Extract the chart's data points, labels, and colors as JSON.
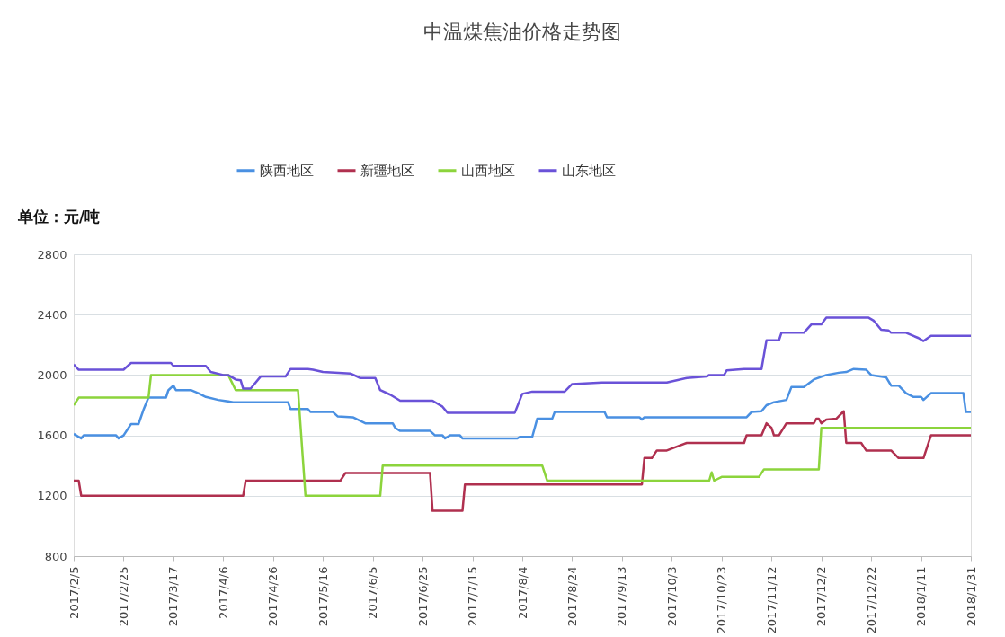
{
  "chart_data": {
    "type": "line",
    "title": "中温煤焦油价格走势图",
    "annotations": [
      "单位：元/吨"
    ],
    "ylim": [
      800,
      2800
    ],
    "yticks": [
      800,
      1200,
      1600,
      2000,
      2400,
      2800
    ],
    "xlim": [
      "2017-02-05",
      "2018-01-31"
    ],
    "xticks": [
      {
        "value": "2017-02-05",
        "label": "2017/2/5"
      },
      {
        "value": "2017-02-25",
        "label": "2017/2/25"
      },
      {
        "value": "2017-03-17",
        "label": "2017/3/17"
      },
      {
        "value": "2017-04-06",
        "label": "2017/4/6"
      },
      {
        "value": "2017-04-26",
        "label": "2017/4/26"
      },
      {
        "value": "2017-05-16",
        "label": "2017/5/16"
      },
      {
        "value": "2017-06-05",
        "label": "2017/6/5"
      },
      {
        "value": "2017-06-25",
        "label": "2017/6/25"
      },
      {
        "value": "2017-07-15",
        "label": "2017/7/15"
      },
      {
        "value": "2017-08-04",
        "label": "2017/8/4"
      },
      {
        "value": "2017-08-24",
        "label": "2017/8/24"
      },
      {
        "value": "2017-09-13",
        "label": "2017/9/13"
      },
      {
        "value": "2017-10-03",
        "label": "2017/10/3"
      },
      {
        "value": "2017-10-23",
        "label": "2017/10/23"
      },
      {
        "value": "2017-11-12",
        "label": "2017/11/12"
      },
      {
        "value": "2017-12-02",
        "label": "2017/12/2"
      },
      {
        "value": "2017-12-22",
        "label": "2017/12/22"
      },
      {
        "value": "2018-01-11",
        "label": "2018/1/11"
      },
      {
        "value": "2018-01-31",
        "label": "2018/1/31"
      }
    ],
    "grid": "y",
    "legend": "top",
    "series": [
      {
        "name": "陕西地区",
        "color": "#4a90e2",
        "x": [
          "2017-02-05",
          "2017-02-08",
          "2017-02-09",
          "2017-02-22",
          "2017-02-23",
          "2017-02-25",
          "2017-02-28",
          "2017-03-03",
          "2017-03-05",
          "2017-03-07",
          "2017-03-14",
          "2017-03-15",
          "2017-03-17",
          "2017-03-18",
          "2017-03-24",
          "2017-03-27",
          "2017-03-30",
          "2017-04-04",
          "2017-04-10",
          "2017-05-02",
          "2017-05-03",
          "2017-05-10",
          "2017-05-11",
          "2017-05-20",
          "2017-05-22",
          "2017-05-28",
          "2017-06-02",
          "2017-06-13",
          "2017-06-14",
          "2017-06-16",
          "2017-06-28",
          "2017-06-30",
          "2017-07-03",
          "2017-07-04",
          "2017-07-06",
          "2017-07-10",
          "2017-07-11",
          "2017-08-02",
          "2017-08-03",
          "2017-08-08",
          "2017-08-10",
          "2017-08-16",
          "2017-08-17",
          "2017-09-06",
          "2017-09-07",
          "2017-09-20",
          "2017-09-21",
          "2017-09-22",
          "2017-11-02",
          "2017-11-04",
          "2017-11-08",
          "2017-11-10",
          "2017-11-13",
          "2017-11-18",
          "2017-11-20",
          "2017-11-25",
          "2017-11-29",
          "2017-12-04",
          "2017-12-09",
          "2017-12-12",
          "2017-12-15",
          "2017-12-20",
          "2017-12-22",
          "2017-12-28",
          "2017-12-30",
          "2018-01-02",
          "2018-01-05",
          "2018-01-08",
          "2018-01-11",
          "2018-01-12",
          "2018-01-15",
          "2018-01-28",
          "2018-01-29",
          "2018-01-31"
        ],
        "values": [
          1610,
          1580,
          1600,
          1600,
          1580,
          1600,
          1675,
          1675,
          1770,
          1850,
          1850,
          1900,
          1930,
          1900,
          1900,
          1880,
          1855,
          1835,
          1820,
          1820,
          1775,
          1775,
          1755,
          1755,
          1725,
          1720,
          1680,
          1680,
          1650,
          1630,
          1630,
          1600,
          1600,
          1580,
          1600,
          1600,
          1580,
          1580,
          1590,
          1590,
          1710,
          1710,
          1755,
          1755,
          1720,
          1720,
          1705,
          1720,
          1720,
          1755,
          1760,
          1800,
          1820,
          1835,
          1920,
          1920,
          1970,
          2000,
          2015,
          2020,
          2040,
          2035,
          2000,
          1985,
          1930,
          1930,
          1880,
          1855,
          1855,
          1835,
          1880,
          1880,
          1755,
          1755
        ]
      },
      {
        "name": "新疆地区",
        "color": "#b0304f",
        "x": [
          "2017-02-05",
          "2017-02-07",
          "2017-02-08",
          "2017-04-14",
          "2017-04-15",
          "2017-05-23",
          "2017-05-25",
          "2017-06-28",
          "2017-06-29",
          "2017-07-11",
          "2017-07-12",
          "2017-09-21",
          "2017-09-22",
          "2017-09-25",
          "2017-09-27",
          "2017-10-01",
          "2017-10-09",
          "2017-11-01",
          "2017-11-02",
          "2017-11-08",
          "2017-11-10",
          "2017-11-12",
          "2017-11-13",
          "2017-11-15",
          "2017-11-18",
          "2017-11-29",
          "2017-11-30",
          "2017-12-01",
          "2017-12-02",
          "2017-12-04",
          "2017-12-08",
          "2017-12-11",
          "2017-12-12",
          "2017-12-18",
          "2017-12-20",
          "2017-12-30",
          "2018-01-02",
          "2018-01-12",
          "2018-01-15",
          "2018-01-31"
        ],
        "values": [
          1300,
          1300,
          1200,
          1200,
          1300,
          1300,
          1350,
          1350,
          1100,
          1100,
          1275,
          1275,
          1450,
          1450,
          1500,
          1500,
          1550,
          1550,
          1600,
          1600,
          1680,
          1650,
          1600,
          1600,
          1680,
          1680,
          1710,
          1710,
          1680,
          1705,
          1710,
          1760,
          1550,
          1550,
          1500,
          1500,
          1450,
          1450,
          1600,
          1600
        ]
      },
      {
        "name": "山西地区",
        "color": "#8cd43c",
        "x": [
          "2017-02-05",
          "2017-02-07",
          "2017-03-07",
          "2017-03-08",
          "2017-04-08",
          "2017-04-11",
          "2017-05-06",
          "2017-05-09",
          "2017-06-08",
          "2017-06-09",
          "2017-08-12",
          "2017-08-14",
          "2017-10-18",
          "2017-10-19",
          "2017-10-20",
          "2017-10-23",
          "2017-11-07",
          "2017-11-09",
          "2017-12-01",
          "2017-12-02",
          "2018-01-31"
        ],
        "values": [
          1800,
          1850,
          1850,
          2000,
          2000,
          1900,
          1900,
          1200,
          1200,
          1400,
          1400,
          1300,
          1300,
          1355,
          1300,
          1325,
          1325,
          1375,
          1375,
          1650,
          1650
        ]
      },
      {
        "name": "山东地区",
        "color": "#6a52d8",
        "x": [
          "2017-02-05",
          "2017-02-07",
          "2017-02-25",
          "2017-02-28",
          "2017-03-16",
          "2017-03-17",
          "2017-03-30",
          "2017-04-01",
          "2017-04-06",
          "2017-04-08",
          "2017-04-11",
          "2017-04-13",
          "2017-04-14",
          "2017-04-17",
          "2017-04-21",
          "2017-05-01",
          "2017-05-03",
          "2017-05-10",
          "2017-05-12",
          "2017-05-16",
          "2017-05-27",
          "2017-05-31",
          "2017-06-06",
          "2017-06-08",
          "2017-06-12",
          "2017-06-16",
          "2017-06-29",
          "2017-07-03",
          "2017-07-05",
          "2017-08-01",
          "2017-08-04",
          "2017-08-08",
          "2017-08-21",
          "2017-08-24",
          "2017-09-05",
          "2017-10-01",
          "2017-10-09",
          "2017-10-17",
          "2017-10-18",
          "2017-10-24",
          "2017-10-25",
          "2017-11-01",
          "2017-11-08",
          "2017-11-10",
          "2017-11-15",
          "2017-11-16",
          "2017-11-25",
          "2017-11-28",
          "2017-12-02",
          "2017-12-04",
          "2017-12-21",
          "2017-12-23",
          "2017-12-26",
          "2017-12-29",
          "2017-12-30",
          "2018-01-05",
          "2018-01-10",
          "2018-01-12",
          "2018-01-15",
          "2018-01-31"
        ],
        "values": [
          2070,
          2035,
          2035,
          2080,
          2080,
          2060,
          2060,
          2020,
          2000,
          2000,
          1970,
          1965,
          1910,
          1910,
          1990,
          1990,
          2040,
          2040,
          2035,
          2020,
          2010,
          1980,
          1980,
          1900,
          1870,
          1830,
          1830,
          1790,
          1750,
          1750,
          1875,
          1890,
          1890,
          1940,
          1950,
          1950,
          1980,
          1990,
          2000,
          2000,
          2030,
          2040,
          2040,
          2230,
          2230,
          2280,
          2280,
          2335,
          2335,
          2380,
          2380,
          2360,
          2300,
          2295,
          2280,
          2280,
          2245,
          2225,
          2260,
          2260
        ]
      }
    ]
  }
}
